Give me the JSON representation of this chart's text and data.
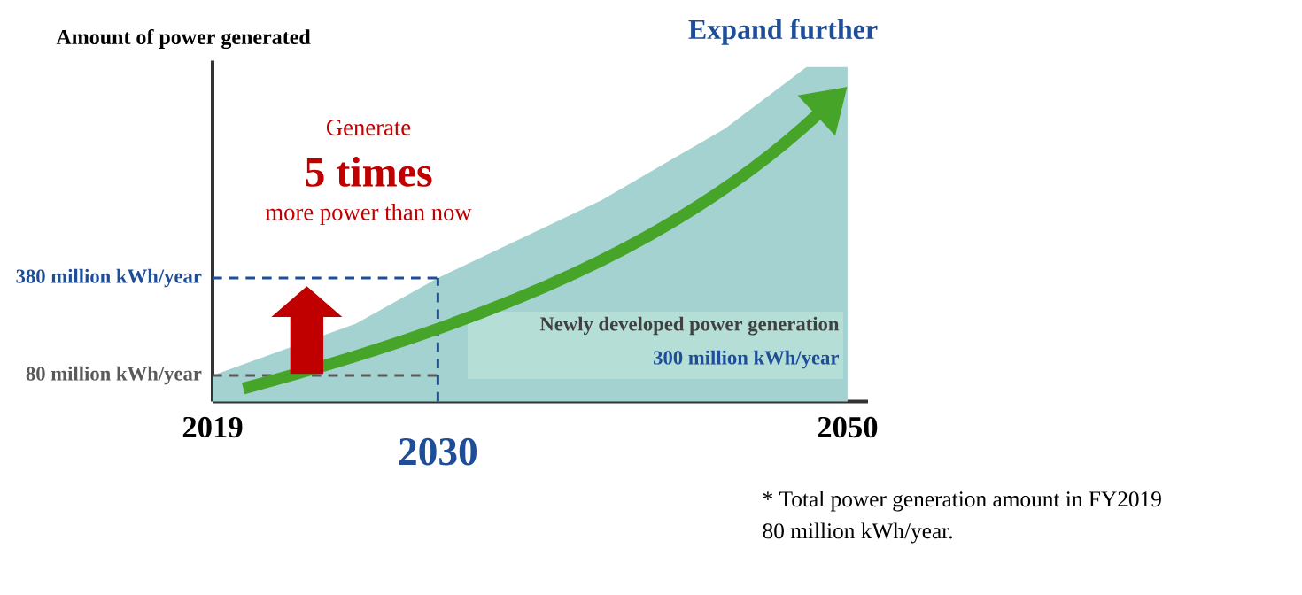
{
  "chart_data": {
    "type": "area",
    "title": "Expand further",
    "ylabel": "Amount of power generated",
    "x": [
      2019,
      2026,
      2030,
      2038,
      2044,
      2048,
      2050
    ],
    "values": [
      80,
      240,
      380,
      620,
      840,
      1030,
      1030
    ],
    "color": "#a3d2d0",
    "xlim": [
      2019,
      2051
    ],
    "ylim": [
      0,
      1050
    ],
    "xticks": [
      2019,
      2050
    ],
    "yticks": [
      {
        "value": 80,
        "label": "80 million kWh/year"
      },
      {
        "value": 380,
        "label": "380 million kWh/year"
      }
    ],
    "ref_lines": [
      {
        "axis": "y",
        "value": 80,
        "color": "#595959",
        "line_style": "dashed"
      },
      {
        "axis": "y",
        "value": 380,
        "color": "#1f4e99",
        "line_style": "dashed"
      },
      {
        "axis": "x",
        "value": 2030,
        "label": "2030",
        "color": "#1f4e99",
        "line_style": "dashed"
      }
    ],
    "annotations": [
      "Generate",
      "5 times",
      "more power than now",
      "Newly developed power generation",
      "300 million kWh/year",
      "* Total power generation amount in FY2019",
      "80 million kWh/year."
    ]
  }
}
